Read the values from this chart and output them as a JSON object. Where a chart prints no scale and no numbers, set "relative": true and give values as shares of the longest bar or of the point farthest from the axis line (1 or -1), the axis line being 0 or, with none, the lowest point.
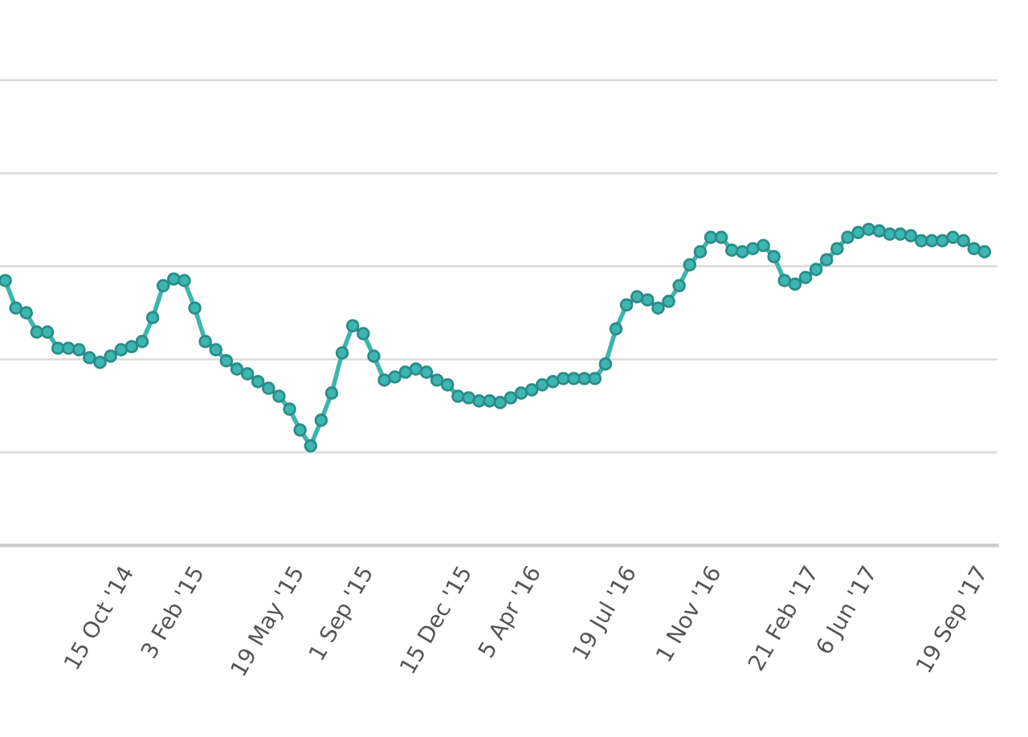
{
  "chart_data": {
    "type": "line",
    "relative": true,
    "grid": "y",
    "marker": "circle",
    "line_style": "solid",
    "categories": [
      null,
      null,
      null,
      null,
      null,
      null,
      null,
      null,
      null,
      "15 Oct '14",
      null,
      null,
      null,
      null,
      null,
      null,
      "3 Feb '15",
      null,
      null,
      null,
      null,
      null,
      null,
      null,
      null,
      "19 May '15",
      null,
      null,
      null,
      null,
      null,
      null,
      "1 Sep '15",
      null,
      null,
      null,
      null,
      null,
      null,
      null,
      null,
      "15 Dec '15",
      null,
      null,
      null,
      null,
      null,
      null,
      "5 Apr '16",
      null,
      null,
      null,
      null,
      null,
      null,
      null,
      null,
      "19 Jul '16",
      null,
      null,
      null,
      null,
      null,
      null,
      null,
      "1 Nov '16",
      null,
      null,
      null,
      null,
      null,
      null,
      null,
      null,
      "21 Feb '17",
      null,
      null,
      null,
      null,
      null,
      "6 Jun '17",
      null,
      null,
      null,
      null,
      null,
      null,
      null,
      null,
      null,
      "19 Sep '17",
      null,
      null,
      null
    ],
    "series": [
      {
        "color": "#3db5b0",
        "values": [
          0.838,
          0.751,
          0.736,
          0.675,
          0.675,
          0.624,
          0.624,
          0.619,
          0.594,
          0.579,
          0.599,
          0.619,
          0.629,
          0.645,
          0.721,
          0.822,
          0.843,
          0.838,
          0.751,
          0.645,
          0.619,
          0.584,
          0.558,
          0.543,
          0.518,
          0.497,
          0.472,
          0.431,
          0.365,
          0.315,
          0.396,
          0.482,
          0.609,
          0.695,
          0.67,
          0.599,
          0.523,
          0.533,
          0.548,
          0.558,
          0.548,
          0.523,
          0.508,
          0.472,
          0.467,
          0.457,
          0.457,
          0.452,
          0.467,
          0.482,
          0.492,
          0.508,
          0.518,
          0.528,
          0.528,
          0.528,
          0.528,
          0.574,
          0.685,
          0.761,
          0.787,
          0.777,
          0.751,
          0.772,
          0.822,
          0.888,
          0.929,
          0.975,
          0.975,
          0.934,
          0.929,
          0.939,
          0.949,
          0.914,
          0.838,
          0.827,
          0.848,
          0.873,
          0.904,
          0.939,
          0.975,
          0.99,
          1.0,
          0.995,
          0.985,
          0.985,
          0.98,
          0.964,
          0.964,
          0.964,
          0.975,
          0.964,
          0.939,
          0.929
        ]
      }
    ]
  }
}
